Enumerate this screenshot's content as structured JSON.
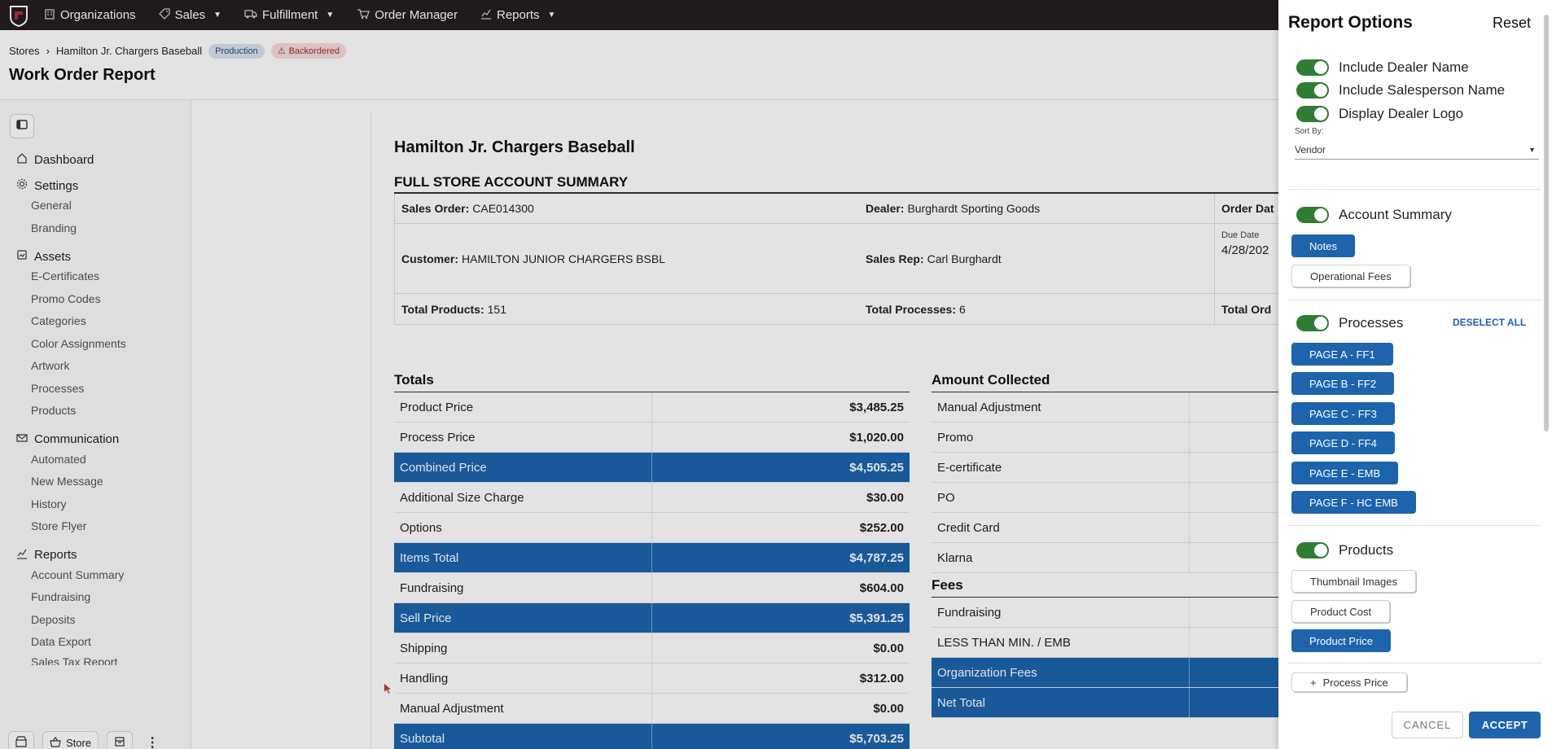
{
  "topnav": {
    "items": [
      {
        "label": "Organizations",
        "icon": "building-icon"
      },
      {
        "label": "Sales",
        "icon": "tag-icon"
      },
      {
        "label": "Fulfillment",
        "icon": "truck-icon"
      },
      {
        "label": "Order Manager",
        "icon": "cart-icon"
      },
      {
        "label": "Reports",
        "icon": "chart-icon"
      }
    ]
  },
  "breadcrumb": {
    "root": "Stores",
    "store": "Hamilton Jr. Chargers Baseball",
    "badge_production": "Production",
    "badge_backordered": "Backordered"
  },
  "page_title": "Work Order Report",
  "sidebar": {
    "groups": [
      {
        "label": "Dashboard",
        "items": []
      },
      {
        "label": "Settings",
        "items": [
          "General",
          "Branding"
        ]
      },
      {
        "label": "Assets",
        "items": [
          "E-Certificates",
          "Promo Codes",
          "Categories",
          "Color Assignments",
          "Artwork",
          "Processes",
          "Products"
        ]
      },
      {
        "label": "Communication",
        "items": [
          "Automated",
          "New Message",
          "History",
          "Store Flyer"
        ]
      },
      {
        "label": "Reports",
        "items": [
          "Account Summary",
          "Fundraising",
          "Deposits",
          "Data Export",
          "Sales Tax Report"
        ]
      }
    ],
    "footer_store": "Store"
  },
  "report": {
    "title": "Hamilton Jr. Chargers Baseball",
    "subtitle": "FULL STORE ACCOUNT SUMMARY",
    "info": {
      "sales_order_label": "Sales Order:",
      "sales_order": "CAE014300",
      "dealer_label": "Dealer:",
      "dealer": "Burghardt Sporting Goods",
      "order_date_label": "Order Dat",
      "customer_label": "Customer:",
      "customer": "HAMILTON JUNIOR CHARGERS BSBL",
      "sales_rep_label": "Sales Rep:",
      "sales_rep": "Carl Burghardt",
      "due_date_label": "Due Date",
      "due_date": "4/28/202",
      "total_products_label": "Total Products:",
      "total_products": "151",
      "total_processes_label": "Total Processes:",
      "total_processes": "6",
      "total_orders_label": "Total Ord"
    },
    "totals_title": "Totals",
    "totals": [
      {
        "label": "Product Price",
        "value": "$3,485.25",
        "highlight": false
      },
      {
        "label": "Process Price",
        "value": "$1,020.00",
        "highlight": false
      },
      {
        "label": "Combined Price",
        "value": "$4,505.25",
        "highlight": true
      },
      {
        "label": "Additional Size Charge",
        "value": "$30.00",
        "highlight": false
      },
      {
        "label": "Options",
        "value": "$252.00",
        "highlight": false
      },
      {
        "label": "Items Total",
        "value": "$4,787.25",
        "highlight": true
      },
      {
        "label": "Fundraising",
        "value": "$604.00",
        "highlight": false
      },
      {
        "label": "Sell Price",
        "value": "$5,391.25",
        "highlight": true
      },
      {
        "label": "Shipping",
        "value": "$0.00",
        "highlight": false
      },
      {
        "label": "Handling",
        "value": "$312.00",
        "highlight": false
      },
      {
        "label": "Manual Adjustment",
        "value": "$0.00",
        "highlight": false
      },
      {
        "label": "Subtotal",
        "value": "$5,703.25",
        "highlight": true
      }
    ],
    "amount_title": "Amount Collected",
    "amount": [
      {
        "label": "Manual Adjustment",
        "highlight": false
      },
      {
        "label": "Promo",
        "highlight": false
      },
      {
        "label": "E-certificate",
        "highlight": false
      },
      {
        "label": "PO",
        "highlight": false
      },
      {
        "label": "Credit Card",
        "highlight": false
      },
      {
        "label": "Klarna",
        "highlight": false
      }
    ],
    "fees_title": "Fees",
    "fees": [
      {
        "label": "Fundraising",
        "highlight": false
      },
      {
        "label": "LESS THAN MIN. / EMB",
        "highlight": false
      },
      {
        "label": "Organization Fees",
        "highlight": true
      },
      {
        "label": "Net Total",
        "highlight": true
      }
    ]
  },
  "drawer": {
    "title": "Report Options",
    "reset": "Reset",
    "toggles": {
      "dealer_name": "Include Dealer Name",
      "salesperson_name": "Include Salesperson Name",
      "dealer_logo": "Display Dealer Logo"
    },
    "sort_by_label": "Sort By:",
    "sort_by_value": "Vendor",
    "account_summary": "Account Summary",
    "account_chips": [
      "Notes",
      "Operational Fees"
    ],
    "processes": "Processes",
    "deselect_all": "DESELECT ALL",
    "process_chips": [
      "PAGE A - FF1",
      "PAGE B - FF2",
      "PAGE C - FF3",
      "PAGE D - FF4",
      "PAGE E - EMB",
      "PAGE F - HC EMB"
    ],
    "products": "Products",
    "product_chips": [
      "Thumbnail Images",
      "Product Cost",
      "Product Price"
    ],
    "process_price": "Process Price",
    "cancel": "CANCEL",
    "accept": "ACCEPT"
  }
}
